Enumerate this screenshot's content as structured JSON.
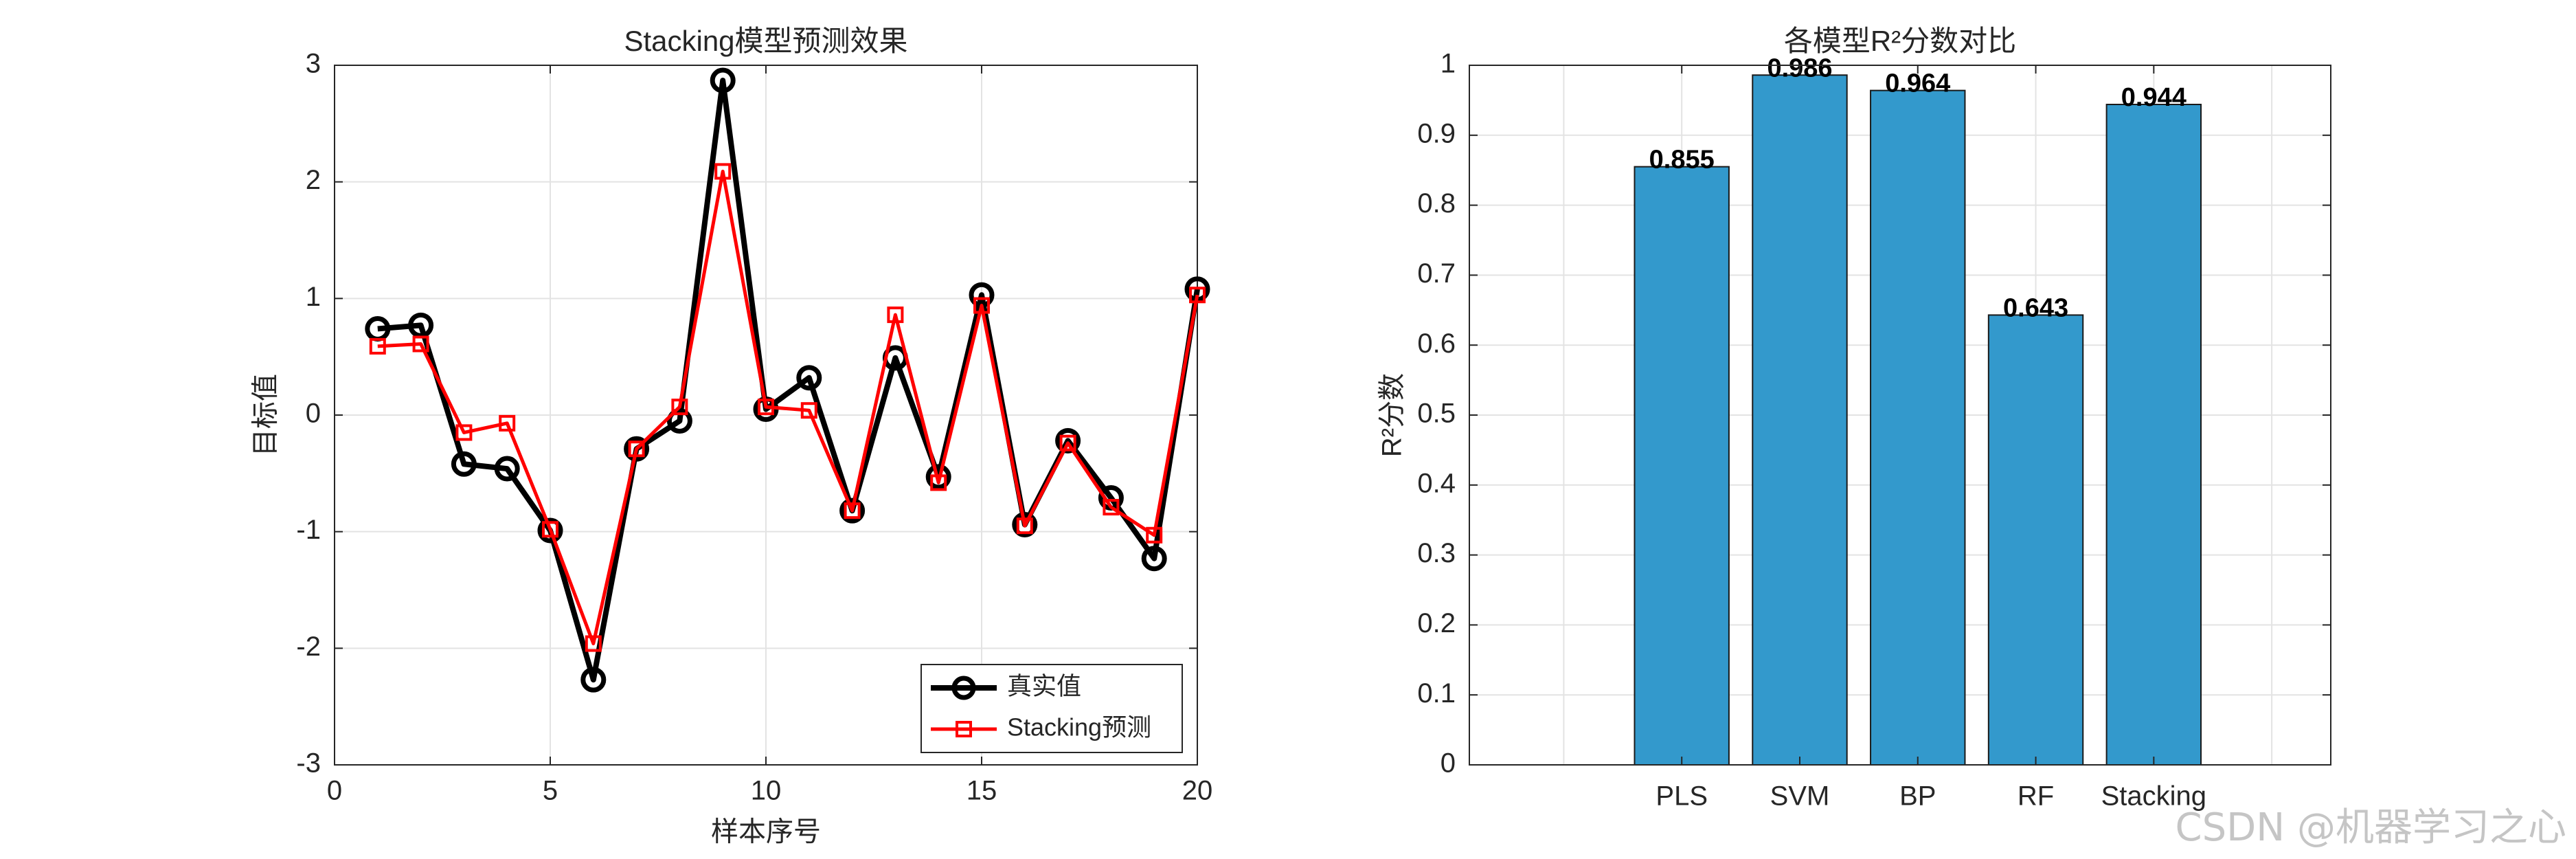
{
  "chart_data": [
    {
      "type": "line",
      "title": "Stacking模型预测效果",
      "xlabel": "样本序号",
      "ylabel": "目标值",
      "xlim": [
        0,
        20
      ],
      "ylim": [
        -3,
        3
      ],
      "xticks": [
        0,
        5,
        10,
        15,
        20
      ],
      "yticks": [
        -3,
        -2,
        -1,
        0,
        1,
        2,
        3
      ],
      "grid": true,
      "legend_position": "bottom-right",
      "x": [
        1,
        2,
        3,
        4,
        5,
        6,
        7,
        8,
        9,
        10,
        11,
        12,
        13,
        14,
        15,
        16,
        17,
        18,
        19,
        20
      ],
      "series": [
        {
          "name": "真实值",
          "color": "#000000",
          "marker": "circle",
          "values": [
            0.74,
            0.77,
            -0.42,
            -0.46,
            -0.99,
            -2.27,
            -0.29,
            -0.05,
            2.87,
            0.05,
            0.32,
            -0.82,
            0.49,
            -0.53,
            1.03,
            -0.94,
            -0.22,
            -0.71,
            -1.23,
            1.08
          ]
        },
        {
          "name": "Stacking预测",
          "color": "#ff0000",
          "marker": "square",
          "values": [
            0.59,
            0.61,
            -0.15,
            -0.07,
            -0.98,
            -1.96,
            -0.29,
            0.07,
            2.09,
            0.07,
            0.04,
            -0.82,
            0.86,
            -0.58,
            0.94,
            -0.95,
            -0.24,
            -0.79,
            -1.03,
            1.03
          ]
        }
      ]
    },
    {
      "type": "bar",
      "title": "各模型R²分数对比",
      "xlabel": "",
      "ylabel": "R²分数",
      "ylim": [
        0,
        1
      ],
      "yticks": [
        0,
        0.1,
        0.2,
        0.3,
        0.4,
        0.5,
        0.6,
        0.7,
        0.8,
        0.9,
        1
      ],
      "grid": true,
      "categories": [
        "PLS",
        "SVM",
        "BP",
        "RF",
        "Stacking"
      ],
      "values": [
        0.855,
        0.986,
        0.964,
        0.643,
        0.944
      ],
      "value_labels": [
        "0.855",
        "0.986",
        "0.964",
        "0.643",
        "0.944"
      ],
      "bar_color": "#3399cc"
    }
  ],
  "watermark": "CSDN @机器学习之心"
}
